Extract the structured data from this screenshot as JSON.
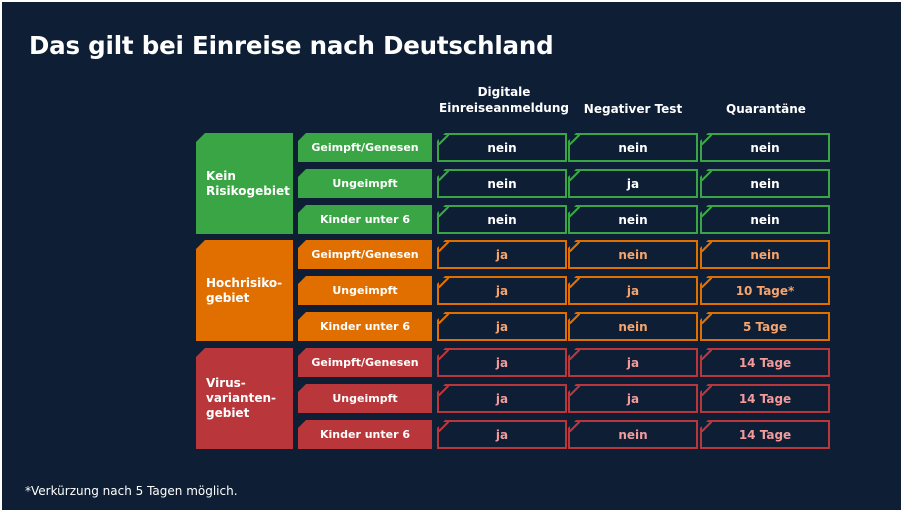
{
  "title": "Das gilt bei Einreise nach Deutschland",
  "columns": [
    "Digitale\nEinreiseanmeldung",
    "Negativer Test",
    "Quarantäne"
  ],
  "colors": {
    "green": "#3aa545",
    "orange": "#e06f00",
    "red": "#b9363a",
    "green_text": "#ffffff",
    "orange_text": "#f6a46b",
    "red_text": "#f39a9a",
    "background": "#0d1e35"
  },
  "groups": [
    {
      "name": "Kein\nRisikogebiet",
      "color": "green",
      "rows": [
        {
          "label": "Geimpft/Genesen",
          "values": [
            "nein",
            "nein",
            "nein"
          ]
        },
        {
          "label": "Ungeimpft",
          "values": [
            "nein",
            "ja",
            "nein"
          ]
        },
        {
          "label": "Kinder unter 6",
          "values": [
            "nein",
            "nein",
            "nein"
          ]
        }
      ]
    },
    {
      "name": "Hochrisiko-\ngebiet",
      "color": "orange",
      "rows": [
        {
          "label": "Geimpft/Genesen",
          "values": [
            "ja",
            "nein",
            "nein"
          ]
        },
        {
          "label": "Ungeimpft",
          "values": [
            "ja",
            "ja",
            "10 Tage*"
          ]
        },
        {
          "label": "Kinder unter 6",
          "values": [
            "ja",
            "nein",
            "5 Tage"
          ]
        }
      ]
    },
    {
      "name": "Virus-\nvarianten-\ngebiet",
      "color": "red",
      "rows": [
        {
          "label": "Geimpft/Genesen",
          "values": [
            "ja",
            "ja",
            "14 Tage"
          ]
        },
        {
          "label": "Ungeimpft",
          "values": [
            "ja",
            "ja",
            "14 Tage"
          ]
        },
        {
          "label": "Kinder unter 6",
          "values": [
            "ja",
            "nein",
            "14 Tage"
          ]
        }
      ]
    }
  ],
  "footnote": "*Verkürzung nach 5 Tagen möglich."
}
